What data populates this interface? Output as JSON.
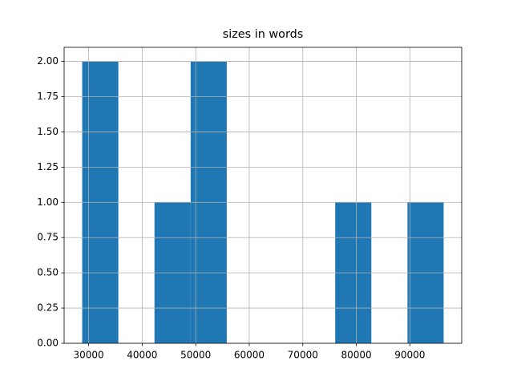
{
  "chart_data": {
    "type": "histogram",
    "title": "sizes in words",
    "bins": [
      28800,
      35550,
      42300,
      49050,
      55800,
      62550,
      69300,
      76050,
      82800,
      89550,
      96300
    ],
    "values": [
      2,
      0,
      1,
      2,
      0,
      0,
      0,
      1,
      0,
      1
    ],
    "color": "#1f77b4",
    "xlim": [
      25425,
      99675
    ],
    "xticks": [
      30000,
      40000,
      50000,
      60000,
      70000,
      80000,
      90000
    ],
    "ylim": [
      0,
      2.1
    ],
    "yticks": [
      {
        "value": 0,
        "label": "0.00"
      },
      {
        "value": 0.25,
        "label": "0.25"
      },
      {
        "value": 0.5,
        "label": "0.50"
      },
      {
        "value": 0.75,
        "label": "0.75"
      },
      {
        "value": 1,
        "label": "1.00"
      },
      {
        "value": 1.25,
        "label": "1.25"
      },
      {
        "value": 1.5,
        "label": "1.50"
      },
      {
        "value": 1.75,
        "label": "1.75"
      },
      {
        "value": 2,
        "label": "2.00"
      }
    ],
    "grid": true
  }
}
